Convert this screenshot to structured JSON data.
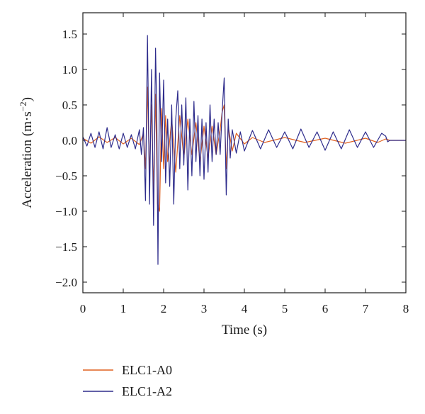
{
  "chart_data": {
    "type": "line",
    "title": "",
    "xlabel": "Time (s)",
    "ylabel_main": "Acceleration (m·s",
    "ylabel_sup": "−2",
    "ylabel_tail": ")",
    "xlim": [
      0,
      8
    ],
    "ylim": [
      -2.15,
      1.8
    ],
    "xticks": [
      0,
      1,
      2,
      3,
      4,
      5,
      6,
      7,
      8
    ],
    "xtick_labels": [
      "0",
      "1",
      "2",
      "3",
      "4",
      "5",
      "6",
      "7",
      "8"
    ],
    "yticks": [
      -2.0,
      -1.5,
      -1.0,
      -0.5,
      0.0,
      0.5,
      1.0,
      1.5
    ],
    "ytick_labels": [
      "−2.0",
      "−1.5",
      "−1.0",
      "−0.5",
      "0.0",
      "0.5",
      "1.0",
      "1.5"
    ],
    "grid": false,
    "legend_position": "bottom-left, below plot",
    "series": [
      {
        "name": "ELC1-A0",
        "color": "#e0601f",
        "x": [
          0,
          0.2,
          0.4,
          0.6,
          0.8,
          1.0,
          1.2,
          1.4,
          1.5,
          1.55,
          1.6,
          1.65,
          1.7,
          1.75,
          1.8,
          1.85,
          1.9,
          1.95,
          2.0,
          2.05,
          2.1,
          2.2,
          2.3,
          2.4,
          2.5,
          2.6,
          2.7,
          2.8,
          2.9,
          3.0,
          3.1,
          3.2,
          3.3,
          3.4,
          3.45,
          3.5,
          3.55,
          3.6,
          3.7,
          3.8,
          4.0,
          4.2,
          4.5,
          5.0,
          5.5,
          6.0,
          6.5,
          7.0,
          7.3,
          7.5,
          7.6,
          8.0
        ],
        "y": [
          0.03,
          -0.04,
          0.05,
          -0.03,
          0.04,
          -0.05,
          0.03,
          -0.06,
          0.1,
          -0.4,
          0.75,
          -0.5,
          0.5,
          -0.7,
          0.65,
          -0.9,
          -1.0,
          0.45,
          -0.4,
          0.35,
          -0.3,
          0.3,
          -0.45,
          0.35,
          -0.25,
          0.3,
          -0.2,
          0.25,
          -0.3,
          0.2,
          -0.25,
          0.2,
          -0.2,
          0.15,
          0.4,
          0.5,
          -0.4,
          0.2,
          -0.15,
          0.1,
          -0.05,
          0.04,
          -0.03,
          0.04,
          -0.03,
          0.03,
          -0.04,
          0.03,
          -0.03,
          0.02,
          0.0,
          0.0
        ]
      },
      {
        "name": "ELC1-A2",
        "color": "#2e2c8c",
        "x": [
          0,
          0.1,
          0.2,
          0.3,
          0.4,
          0.5,
          0.6,
          0.7,
          0.8,
          0.9,
          1.0,
          1.1,
          1.2,
          1.3,
          1.4,
          1.45,
          1.5,
          1.55,
          1.6,
          1.62,
          1.65,
          1.7,
          1.75,
          1.8,
          1.83,
          1.86,
          1.9,
          1.95,
          2.0,
          2.05,
          2.1,
          2.15,
          2.2,
          2.25,
          2.3,
          2.35,
          2.4,
          2.45,
          2.5,
          2.55,
          2.6,
          2.65,
          2.7,
          2.75,
          2.8,
          2.85,
          2.9,
          2.95,
          3.0,
          3.05,
          3.1,
          3.15,
          3.2,
          3.25,
          3.3,
          3.35,
          3.4,
          3.45,
          3.5,
          3.55,
          3.6,
          3.65,
          3.7,
          3.8,
          3.9,
          4.0,
          4.2,
          4.4,
          4.6,
          4.8,
          5.0,
          5.2,
          5.4,
          5.6,
          5.8,
          6.0,
          6.2,
          6.4,
          6.6,
          6.8,
          7.0,
          7.2,
          7.4,
          7.5,
          7.55,
          7.6,
          8.0
        ],
        "y": [
          0.05,
          -0.08,
          0.1,
          -0.1,
          0.12,
          -0.12,
          0.18,
          -0.1,
          0.08,
          -0.12,
          0.1,
          -0.1,
          0.08,
          -0.12,
          0.15,
          -0.2,
          0.18,
          -0.85,
          1.48,
          0.6,
          -0.9,
          1.0,
          -1.2,
          1.3,
          0.4,
          -1.75,
          0.95,
          -0.3,
          0.85,
          -0.6,
          0.3,
          -0.65,
          0.5,
          -0.9,
          0.3,
          0.7,
          -0.4,
          0.5,
          -0.35,
          0.6,
          -0.7,
          0.3,
          -0.5,
          0.55,
          -0.3,
          0.35,
          -0.5,
          0.3,
          -0.55,
          0.25,
          -0.45,
          0.5,
          -0.3,
          0.3,
          -0.2,
          0.25,
          -0.2,
          0.4,
          0.88,
          -0.77,
          0.3,
          -0.25,
          0.15,
          -0.18,
          0.12,
          -0.15,
          0.14,
          -0.12,
          0.15,
          -0.1,
          0.12,
          -0.12,
          0.16,
          -0.1,
          0.12,
          -0.14,
          0.12,
          -0.12,
          0.15,
          -0.1,
          0.12,
          -0.1,
          0.1,
          0.06,
          -0.02,
          0.0,
          0.0
        ]
      }
    ]
  }
}
